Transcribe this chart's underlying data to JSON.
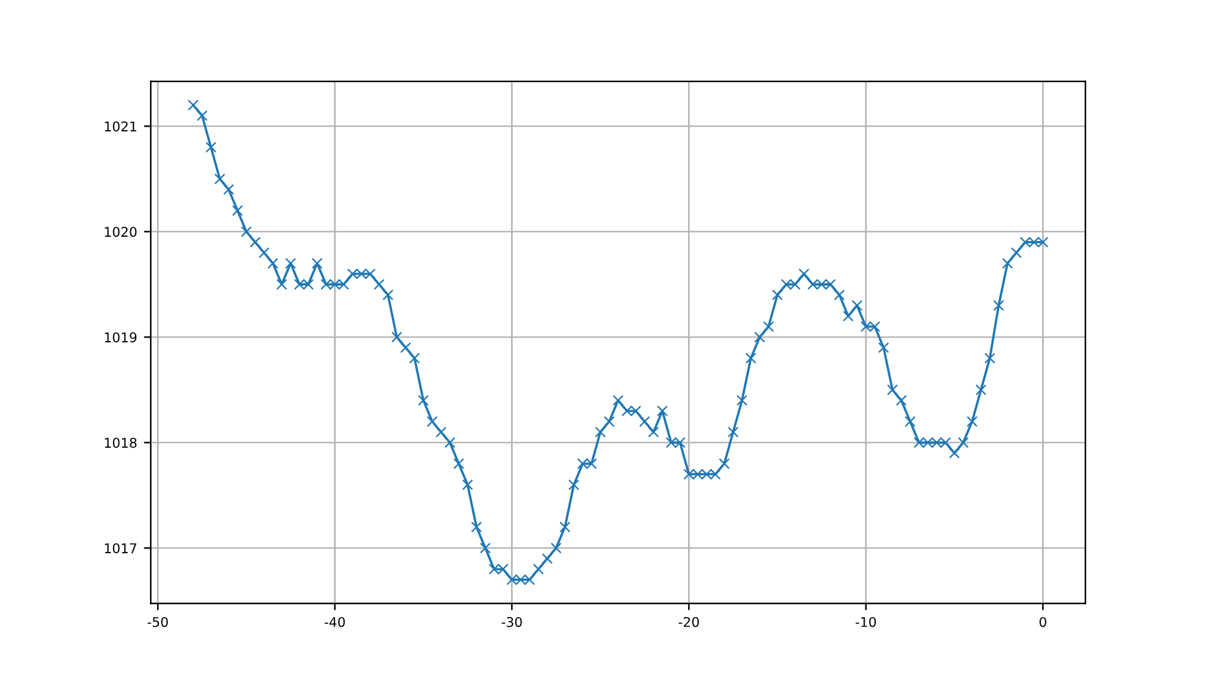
{
  "chart_data": {
    "type": "line",
    "marker": "cross",
    "grid": true,
    "xlim": [
      -50.4,
      2.4
    ],
    "ylim": [
      1016.475,
      1021.425
    ],
    "xticks": [
      -50,
      -40,
      -30,
      -20,
      -10,
      0
    ],
    "yticks": [
      1017,
      1018,
      1019,
      1020,
      1021
    ],
    "x": [
      -48,
      -47.5,
      -47,
      -46.5,
      -46,
      -45.5,
      -45,
      -44.5,
      -44,
      -43.5,
      -43,
      -42.5,
      -42,
      -41.5,
      -41,
      -40.5,
      -40,
      -39.5,
      -39,
      -38.5,
      -38,
      -37.5,
      -37,
      -36.5,
      -36,
      -35.5,
      -35,
      -34.5,
      -34,
      -33.5,
      -33,
      -32.5,
      -32,
      -31.5,
      -31,
      -30.5,
      -30,
      -29.5,
      -29,
      -28.5,
      -28,
      -27.5,
      -27,
      -26.5,
      -26,
      -25.5,
      -25,
      -24.5,
      -24,
      -23.5,
      -23,
      -22.5,
      -22,
      -21.5,
      -21,
      -20.5,
      -20,
      -19.5,
      -19,
      -18.5,
      -18,
      -17.5,
      -17,
      -16.5,
      -16,
      -15.5,
      -15,
      -14.5,
      -14,
      -13.5,
      -13,
      -12.5,
      -12,
      -11.5,
      -11,
      -10.5,
      -10,
      -9.5,
      -9,
      -8.5,
      -8,
      -7.5,
      -7,
      -6.5,
      -6,
      -5.5,
      -5,
      -4.5,
      -4,
      -3.5,
      -3,
      -2.5,
      -2,
      -1.5,
      -1,
      -0.5,
      0
    ],
    "series": [
      {
        "color": "#1f77b4",
        "values": [
          1021.2,
          1021.1,
          1020.8,
          1020.5,
          1020.4,
          1020.2,
          1020.0,
          1019.9,
          1019.8,
          1019.7,
          1019.5,
          1019.7,
          1019.5,
          1019.5,
          1019.7,
          1019.5,
          1019.5,
          1019.5,
          1019.6,
          1019.6,
          1019.6,
          1019.5,
          1019.4,
          1019.0,
          1018.9,
          1018.8,
          1018.4,
          1018.2,
          1018.1,
          1018.0,
          1017.8,
          1017.6,
          1017.2,
          1017.0,
          1016.8,
          1016.8,
          1016.7,
          1016.7,
          1016.7,
          1016.8,
          1016.9,
          1017.0,
          1017.2,
          1017.6,
          1017.8,
          1017.8,
          1018.1,
          1018.2,
          1018.4,
          1018.3,
          1018.3,
          1018.2,
          1018.1,
          1018.3,
          1018.0,
          1018.0,
          1017.7,
          1017.7,
          1017.7,
          1017.7,
          1017.8,
          1018.1,
          1018.4,
          1018.8,
          1019.0,
          1019.1,
          1019.4,
          1019.5,
          1019.5,
          1019.6,
          1019.5,
          1019.5,
          1019.5,
          1019.4,
          1019.2,
          1019.3,
          1019.1,
          1019.1,
          1018.9,
          1018.5,
          1018.4,
          1018.2,
          1018.0,
          1018.0,
          1018.0,
          1018.0,
          1017.9,
          1018.0,
          1018.2,
          1018.5,
          1018.8,
          1019.3,
          1019.7,
          1019.8,
          1019.9,
          1019.9,
          1019.9
        ]
      }
    ]
  }
}
